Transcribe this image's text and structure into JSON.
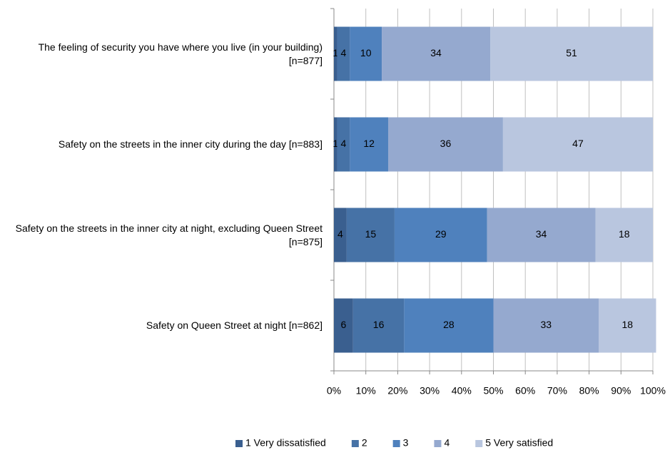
{
  "chart_data": {
    "type": "stacked-bar-horizontal",
    "categories": [
      "The feeling of security you have where you live (in your building) [n=877]",
      "Safety on the streets in the inner city during the day [n=883]",
      "Safety on the streets in the inner city at night, excluding Queen Street [n=875]",
      "Safety on Queen Street at night [n=862]"
    ],
    "series": [
      {
        "name": "1 Very dissatisfied",
        "color": "#3a5f8f",
        "values": [
          1,
          1,
          4,
          6
        ]
      },
      {
        "name": "2",
        "color": "#4672a6",
        "values": [
          4,
          4,
          15,
          16
        ]
      },
      {
        "name": "3",
        "color": "#4f81bd",
        "values": [
          10,
          12,
          29,
          28
        ]
      },
      {
        "name": "4",
        "color": "#95a9cf",
        "values": [
          34,
          36,
          34,
          33
        ]
      },
      {
        "name": "5 Very satisfied",
        "color": "#b9c6df",
        "values": [
          51,
          47,
          18,
          18
        ]
      }
    ],
    "xlim": [
      0,
      100
    ],
    "xticks": [
      {
        "value": 0,
        "label": "0%"
      },
      {
        "value": 10,
        "label": "10%"
      },
      {
        "value": 20,
        "label": "20%"
      },
      {
        "value": 30,
        "label": "30%"
      },
      {
        "value": 40,
        "label": "40%"
      },
      {
        "value": 50,
        "label": "50%"
      },
      {
        "value": 60,
        "label": "60%"
      },
      {
        "value": 70,
        "label": "70%"
      },
      {
        "value": 80,
        "label": "80%"
      },
      {
        "value": 90,
        "label": "90%"
      },
      {
        "value": 100,
        "label": "100%"
      }
    ],
    "grid": true,
    "legend": "bottom"
  }
}
